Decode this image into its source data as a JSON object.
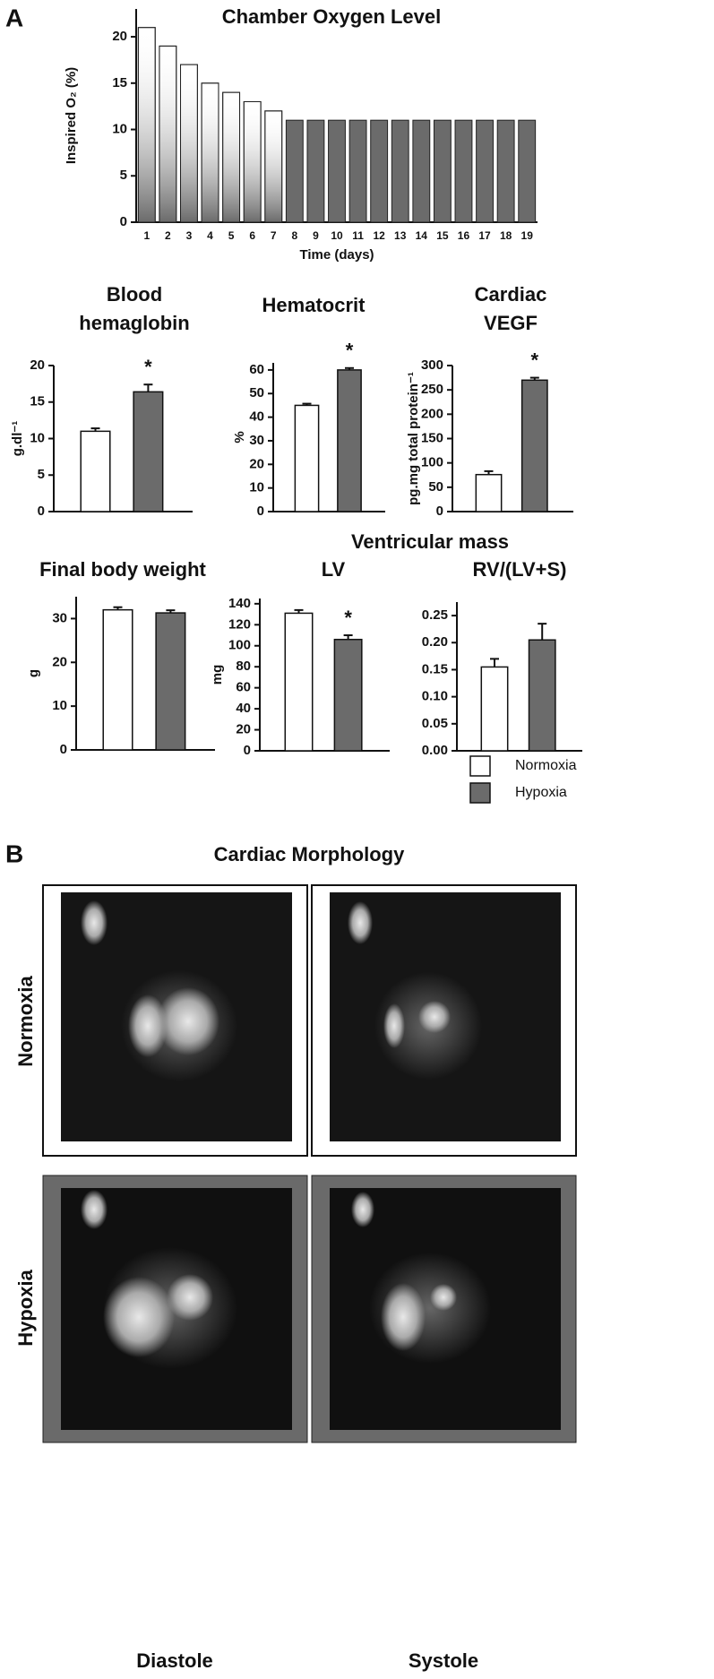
{
  "panel_a": {
    "label": "A",
    "group_title": "Ventricular mass"
  },
  "legend": [
    {
      "name": "Normoxia",
      "color": "#ffffff"
    },
    {
      "name": "Hypoxia",
      "color": "#6b6b6b"
    }
  ],
  "chart_data": [
    {
      "type": "bar",
      "title": "Chamber Oxygen Level",
      "y_label": "Inspired O₂ (%)",
      "x_label": "Time (days)",
      "categories": [
        "1",
        "2",
        "3",
        "4",
        "5",
        "6",
        "7",
        "8",
        "9",
        "10",
        "11",
        "12",
        "13",
        "14",
        "15",
        "16",
        "17",
        "18",
        "19"
      ],
      "values": [
        21,
        19,
        17,
        15,
        14,
        13,
        12,
        11,
        11,
        11,
        11,
        11,
        11,
        11,
        11,
        11,
        11,
        11,
        11
      ],
      "colors": [
        "#ffffff",
        "#ffffff",
        "#ffffff",
        "#ffffff",
        "#ffffff",
        "#ffffff",
        "#ffffff",
        "#6b6b6b",
        "#6b6b6b",
        "#6b6b6b",
        "#6b6b6b",
        "#6b6b6b",
        "#6b6b6b",
        "#6b6b6b",
        "#6b6b6b",
        "#6b6b6b",
        "#6b6b6b",
        "#6b6b6b",
        "#6b6b6b"
      ],
      "ylim": [
        0,
        23
      ],
      "yticks": [
        0,
        5,
        10,
        15,
        20
      ]
    },
    {
      "type": "errorbar",
      "title": [
        "Blood",
        "hemaglobin"
      ],
      "y_label": "g.dl⁻¹",
      "values": [
        11,
        16.4
      ],
      "errors": [
        0.4,
        1.0
      ],
      "annotation": {
        "index": 1,
        "text": "*"
      },
      "ylim": [
        0,
        20
      ],
      "yticks": [
        0,
        5,
        10,
        15,
        20
      ]
    },
    {
      "type": "errorbar",
      "title": "Hematocrit",
      "y_label": "%",
      "values": [
        45,
        60
      ],
      "errors": [
        0.7,
        0.8
      ],
      "annotation": {
        "index": 1,
        "text": "*"
      },
      "ylim": [
        0,
        63
      ],
      "yticks": [
        0,
        10,
        20,
        30,
        40,
        50,
        60
      ]
    },
    {
      "type": "errorbar",
      "title": [
        "Cardiac",
        "VEGF"
      ],
      "y_label": "pg.mg total protein⁻¹",
      "values": [
        76,
        270
      ],
      "errors": [
        7,
        5
      ],
      "annotation": {
        "index": 1,
        "text": "*"
      },
      "ylim": [
        0,
        300
      ],
      "yticks": [
        0,
        50,
        100,
        150,
        200,
        250,
        300
      ]
    },
    {
      "type": "errorbar",
      "title": "Final body weight",
      "y_label": "g",
      "values": [
        32,
        31.3
      ],
      "errors": [
        0.6,
        0.6
      ],
      "ylim": [
        0,
        35
      ],
      "yticks": [
        0,
        10,
        20,
        30
      ]
    },
    {
      "type": "errorbar",
      "title": "LV",
      "y_label": "mg",
      "values": [
        131,
        106
      ],
      "errors": [
        3,
        4
      ],
      "annotation": {
        "index": 1,
        "text": "*"
      },
      "ylim": [
        0,
        145
      ],
      "yticks": [
        0,
        20,
        40,
        60,
        80,
        100,
        120,
        140
      ]
    },
    {
      "type": "errorbar",
      "title": "RV/(LV+S)",
      "values": [
        0.155,
        0.205
      ],
      "errors": [
        0.015,
        0.03
      ],
      "ylim": [
        0,
        0.275
      ],
      "yticks": [
        {
          "value": 0,
          "label": "0.00"
        },
        {
          "value": 0.05,
          "label": "0.05"
        },
        {
          "value": 0.1,
          "label": "0.10"
        },
        {
          "value": 0.15,
          "label": "0.15"
        },
        {
          "value": 0.2,
          "label": "0.20"
        },
        {
          "value": 0.25,
          "label": "0.25"
        }
      ]
    }
  ],
  "panel_b": {
    "label": "B",
    "title": "Cardiac Morphology",
    "rows": [
      "Normoxia",
      "Hypoxia"
    ],
    "columns": [
      "Diastole",
      "Systole"
    ]
  }
}
